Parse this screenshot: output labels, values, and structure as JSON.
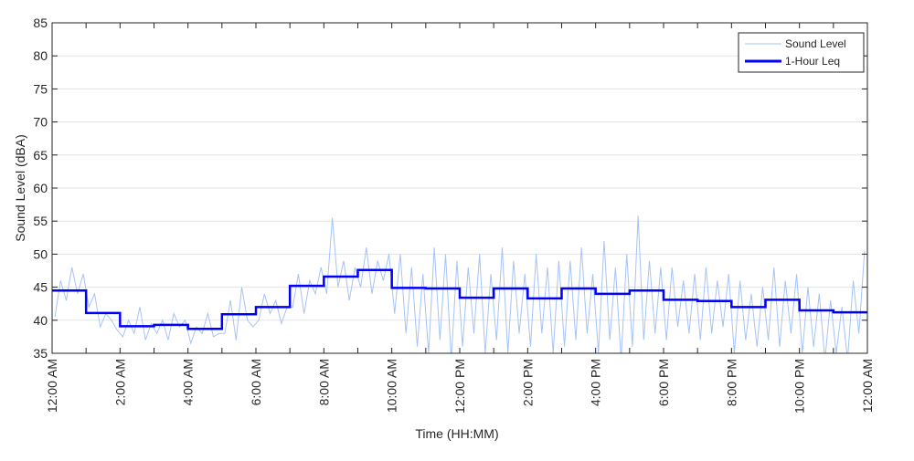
{
  "chart_data": {
    "type": "line",
    "title": "",
    "xlabel": "Time (HH:MM)",
    "ylabel": "Sound Level (dBA)",
    "xlim_hours": [
      0,
      24
    ],
    "ylim": [
      35,
      85
    ],
    "yticks": [
      35,
      40,
      45,
      50,
      55,
      60,
      65,
      70,
      75,
      80,
      85
    ],
    "xtick_hours": [
      0,
      2,
      4,
      6,
      8,
      10,
      12,
      14,
      16,
      18,
      20,
      22,
      24
    ],
    "xtick_labels": [
      "12:00 AM",
      "2:00 AM",
      "4:00 AM",
      "6:00 AM",
      "8:00 AM",
      "10:00 AM",
      "12:00 PM",
      "2:00 PM",
      "4:00 PM",
      "6:00 PM",
      "8:00 PM",
      "10:00 PM",
      "12:00 AM"
    ],
    "grid": "horizontal",
    "legend_position": "top-right",
    "series": [
      {
        "name": "Sound Level",
        "color": "#a6c3f7",
        "interval_minutes": 10,
        "values": [
          40.5,
          46,
          43,
          48,
          44,
          47,
          42,
          44,
          39,
          41,
          40,
          38.5,
          37.5,
          40,
          38,
          42,
          37,
          39.5,
          38,
          40,
          37,
          41,
          39,
          40,
          36.5,
          39,
          38,
          41,
          37.5,
          38,
          38,
          43,
          37,
          45,
          40,
          39,
          40,
          44,
          41,
          43,
          39.5,
          42,
          42,
          47,
          41,
          46,
          44,
          48,
          44,
          55.5,
          45,
          49,
          43,
          48,
          45,
          51,
          44,
          49,
          46,
          50,
          41,
          50,
          38,
          48,
          36,
          47,
          35,
          51,
          37,
          50,
          34,
          49,
          36,
          48,
          38,
          50,
          35,
          47,
          37,
          51,
          35,
          49,
          38,
          47,
          36,
          50,
          38,
          48,
          35,
          49,
          36,
          49,
          37,
          51,
          38,
          47,
          35,
          52,
          37,
          48,
          34,
          50,
          36,
          55.8,
          37,
          49,
          38,
          48,
          37,
          48,
          39,
          46,
          38,
          47,
          37,
          48,
          38,
          46,
          39,
          47,
          35,
          46,
          37,
          44,
          36,
          45,
          37,
          48,
          36,
          46,
          38,
          47,
          35,
          45,
          36,
          44,
          34,
          43,
          35,
          42,
          34,
          46,
          38,
          50.5
        ]
      },
      {
        "name": "1-Hour Leq",
        "color": "#0000ff",
        "step": true,
        "hours": [
          0,
          1,
          2,
          3,
          4,
          5,
          6,
          7,
          8,
          9,
          10,
          11,
          12,
          13,
          14,
          15,
          16,
          17,
          18,
          19,
          20,
          21,
          22,
          23
        ],
        "values": [
          44.5,
          41.1,
          39.1,
          39.3,
          38.7,
          40.9,
          42.0,
          45.2,
          46.6,
          47.6,
          44.9,
          44.8,
          43.4,
          44.8,
          43.3,
          44.8,
          44.0,
          44.5,
          43.1,
          42.9,
          42.0,
          43.1,
          41.5,
          41.2
        ]
      }
    ]
  }
}
